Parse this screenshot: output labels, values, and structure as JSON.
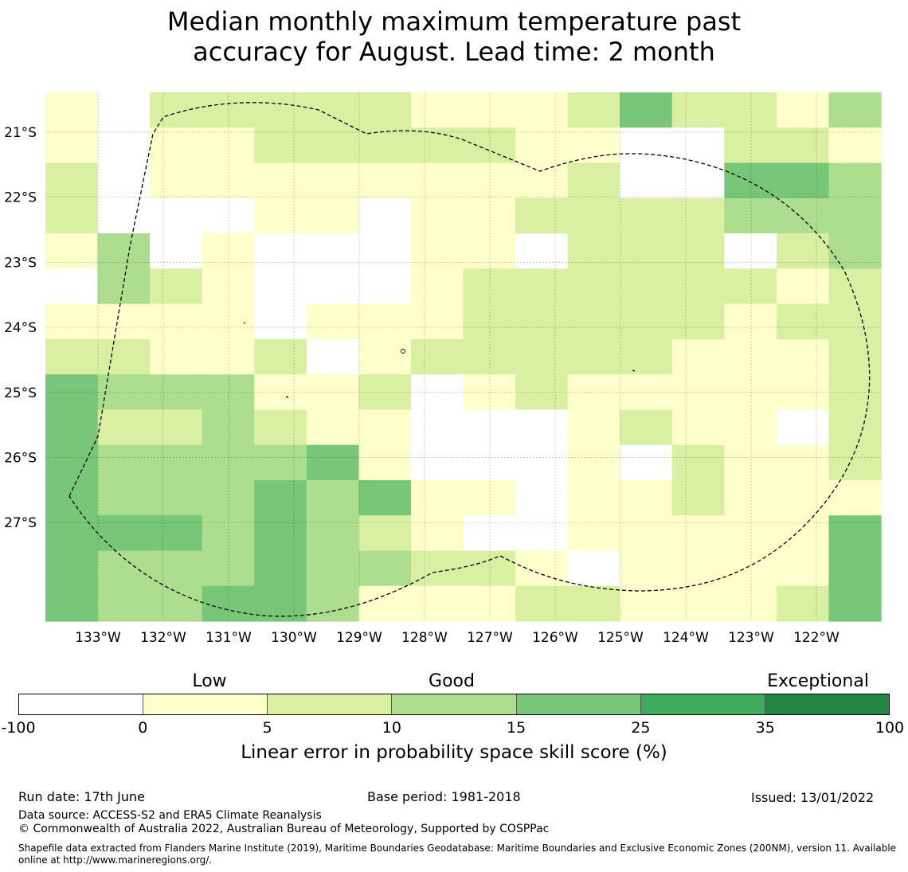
{
  "title_line1": "Median monthly maximum temperature past",
  "title_line2": "accuracy for August. Lead time: 2 month",
  "map": {
    "lon_labels": [
      "133°W",
      "132°W",
      "131°W",
      "130°W",
      "129°W",
      "128°W",
      "127°W",
      "126°W",
      "125°W",
      "124°W",
      "123°W",
      "122°W"
    ],
    "lat_labels": [
      "21°S",
      "22°S",
      "23°S",
      "24°S",
      "25°S",
      "26°S",
      "27°S"
    ],
    "columns": 16,
    "rows": 15,
    "palette": [
      "#ffffff",
      "#ffffcc",
      "#d9f0a3",
      "#addd8e",
      "#78c679",
      "#41ab5d",
      "#238443"
    ],
    "cell_classes": [
      "1022222111242213",
      "1011222221100221",
      "2011111111200443",
      "2000110112222333",
      "1301000110222023",
      "0321000122222212",
      "1111011122222122",
      "2211201222221112",
      "4333112012111112",
      "4223211000121102",
      "4333341000102112",
      "4333434110112111",
      "4443432100111114",
      "4333433221011114",
      "4334431112211124"
    ]
  },
  "colorbar": {
    "categories": [
      "Low",
      "Good",
      "Exceptional"
    ],
    "ticks": [
      "-100",
      "0",
      "5",
      "10",
      "15",
      "25",
      "35",
      "100"
    ],
    "colors": [
      "#ffffff",
      "#ffffcc",
      "#d9f0a3",
      "#addd8e",
      "#78c679",
      "#41ab5d",
      "#238443"
    ],
    "title": "Linear error in probability space skill score (%)"
  },
  "footer": {
    "run_date": "Run date: 17th June",
    "base_period": "Base period: 1981-2018",
    "issued": "Issued: 13/01/2022",
    "data_source": "Data source: ACCESS-S2 and ERA5 Climate Reanalysis",
    "copyright": "© Commonwealth of Australia 2022, Australian Bureau of Meteorology, Supported by COSPPac",
    "shapefile_line1": "Shapefile data extracted from Flanders Marine Institute (2019), Maritime Boundaries Geodatabase: Maritime Boundaries and Exclusive Economic Zones (200NM), version 11. Available",
    "shapefile_line2": "online at http://www.marineregions.org/."
  }
}
